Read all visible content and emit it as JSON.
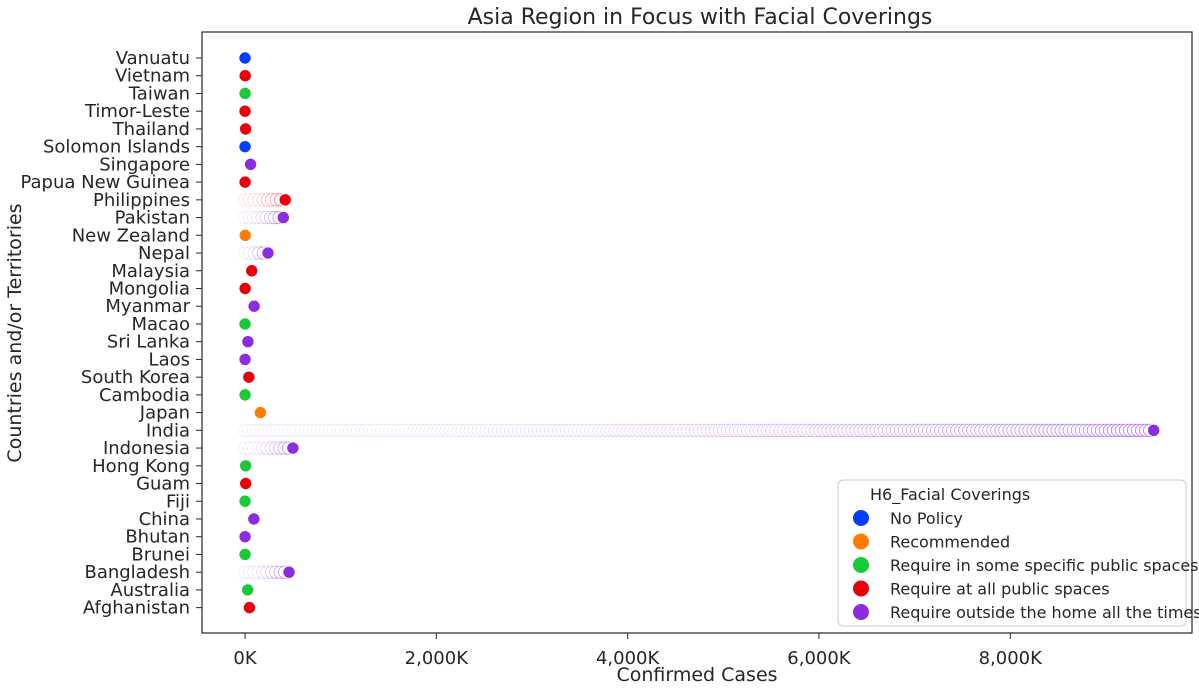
{
  "chart_data": {
    "type": "scatter",
    "title": "Asia Region in Focus with Facial Coverings",
    "xlabel": "Confirmed Cases",
    "ylabel": "Countries and/or Territories",
    "xlim": [
      -450000,
      9900000
    ],
    "x_ticks": [
      {
        "value": 0,
        "label": "0K"
      },
      {
        "value": 2000000,
        "label": "2,000K"
      },
      {
        "value": 4000000,
        "label": "4,000K"
      },
      {
        "value": 6000000,
        "label": "6,000K"
      },
      {
        "value": 8000000,
        "label": "8,000K"
      }
    ],
    "categories": [
      "Vanuatu",
      "Vietnam",
      "Taiwan",
      "Timor-Leste",
      "Thailand",
      "Solomon Islands",
      "Singapore",
      "Papua New Guinea",
      "Philippines",
      "Pakistan",
      "New Zealand",
      "Nepal",
      "Malaysia",
      "Mongolia",
      "Myanmar",
      "Macao",
      "Sri Lanka",
      "Laos",
      "South Korea",
      "Cambodia",
      "Japan",
      "India",
      "Indonesia",
      "Hong Kong",
      "Guam",
      "Fiji",
      "China",
      "Bhutan",
      "Brunei",
      "Bangladesh",
      "Australia",
      "Afghanistan"
    ],
    "legend": {
      "title": "H6_Facial Coverings",
      "position": "lower-right",
      "items": [
        {
          "label": "No Policy",
          "color": "#023eff"
        },
        {
          "label": "Recommended",
          "color": "#ff7c00"
        },
        {
          "label": "Require in some specific public spaces",
          "color": "#1ac938"
        },
        {
          "label": "Require at all public spaces",
          "color": "#e8000b"
        },
        {
          "label": "Require outside the home all the times",
          "color": "#8b2be2"
        }
      ]
    },
    "points": [
      {
        "category": "Vanuatu",
        "x": 1,
        "policy": "No Policy"
      },
      {
        "category": "Vietnam",
        "x": 1400,
        "policy": "Require at all public spaces"
      },
      {
        "category": "Taiwan",
        "x": 500,
        "policy": "Require in some specific public spaces"
      },
      {
        "category": "Timor-Leste",
        "x": 30,
        "policy": "Require at all public spaces"
      },
      {
        "category": "Thailand",
        "x": 6000,
        "policy": "Require at all public spaces"
      },
      {
        "category": "Solomon Islands",
        "x": 16,
        "policy": "No Policy"
      },
      {
        "category": "Singapore",
        "x": 58000,
        "policy": "Require outside the home all the times"
      },
      {
        "category": "Papua New Guinea",
        "x": 600,
        "policy": "Require at all public spaces"
      },
      {
        "category": "Philippines",
        "x": 420000,
        "policy": "Require at all public spaces",
        "trail_from": 0
      },
      {
        "category": "Pakistan",
        "x": 400000,
        "policy": "Require outside the home all the times",
        "trail_from": 0
      },
      {
        "category": "New Zealand",
        "x": 2000,
        "policy": "Recommended"
      },
      {
        "category": "Nepal",
        "x": 240000,
        "policy": "Require outside the home all the times",
        "trail_from": 0
      },
      {
        "category": "Malaysia",
        "x": 70000,
        "policy": "Require at all public spaces"
      },
      {
        "category": "Mongolia",
        "x": 1000,
        "policy": "Require at all public spaces"
      },
      {
        "category": "Myanmar",
        "x": 95000,
        "policy": "Require outside the home all the times"
      },
      {
        "category": "Macao",
        "x": 46,
        "policy": "Require in some specific public spaces"
      },
      {
        "category": "Sri Lanka",
        "x": 30000,
        "policy": "Require outside the home all the times"
      },
      {
        "category": "Laos",
        "x": 40,
        "policy": "Require outside the home all the times"
      },
      {
        "category": "South Korea",
        "x": 40000,
        "policy": "Require at all public spaces"
      },
      {
        "category": "Cambodia",
        "x": 350,
        "policy": "Require in some specific public spaces"
      },
      {
        "category": "Japan",
        "x": 160000,
        "policy": "Recommended"
      },
      {
        "category": "India",
        "x": 9500000,
        "policy": "Require outside the home all the times",
        "trail_from": 0
      },
      {
        "category": "Indonesia",
        "x": 500000,
        "policy": "Require outside the home all the times",
        "trail_from": 0
      },
      {
        "category": "Hong Kong",
        "x": 6500,
        "policy": "Require in some specific public spaces"
      },
      {
        "category": "Guam",
        "x": 7000,
        "policy": "Require at all public spaces"
      },
      {
        "category": "Fiji",
        "x": 40,
        "policy": "Require in some specific public spaces"
      },
      {
        "category": "China",
        "x": 92000,
        "policy": "Require outside the home all the times"
      },
      {
        "category": "Bhutan",
        "x": 400,
        "policy": "Require outside the home all the times"
      },
      {
        "category": "Brunei",
        "x": 150,
        "policy": "Require in some specific public spaces"
      },
      {
        "category": "Bangladesh",
        "x": 460000,
        "policy": "Require outside the home all the times",
        "trail_from": 0
      },
      {
        "category": "Australia",
        "x": 28000,
        "policy": "Require in some specific public spaces"
      },
      {
        "category": "Afghanistan",
        "x": 46000,
        "policy": "Require at all public spaces"
      }
    ],
    "grid": false
  }
}
